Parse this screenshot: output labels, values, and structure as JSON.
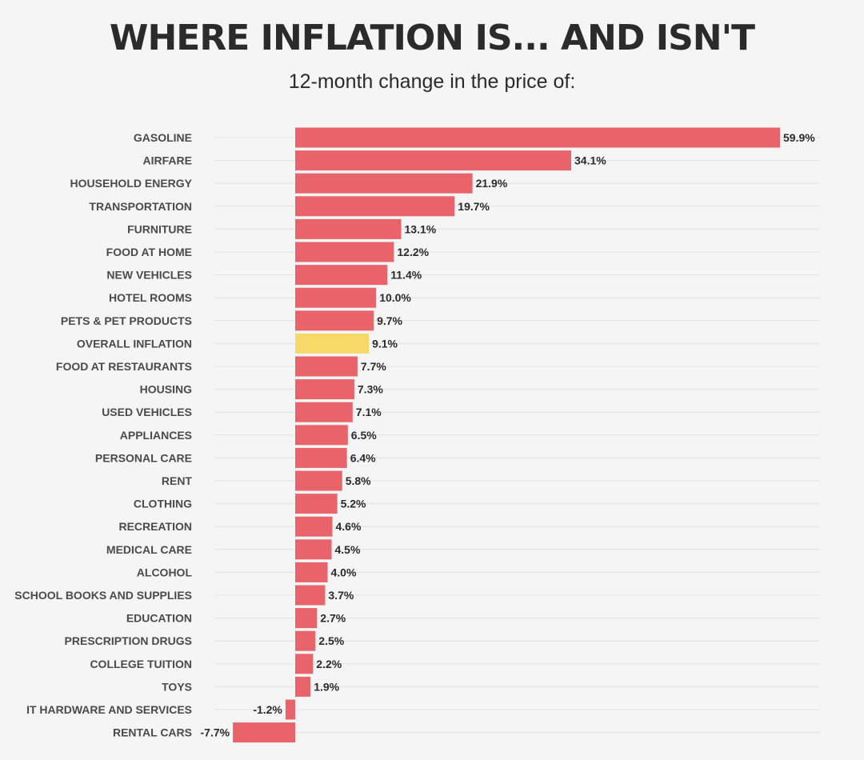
{
  "header": {
    "title": "WHERE INFLATION IS... AND ISN'T",
    "subtitle": "12-month change in the price of:"
  },
  "colors": {
    "bar": "#e8646a",
    "highlight": "#f7d96a",
    "background": "#f5f5f5"
  },
  "chart_data": {
    "type": "bar",
    "orientation": "horizontal",
    "title": "WHERE INFLATION IS... AND ISN'T",
    "subtitle": "12-month change in the price of:",
    "unit": "%",
    "categories": [
      "GASOLINE",
      "AIRFARE",
      "HOUSEHOLD ENERGY",
      "TRANSPORTATION",
      "FURNITURE",
      "FOOD AT HOME",
      "NEW VEHICLES",
      "HOTEL ROOMS",
      "PETS & PET PRODUCTS",
      "OVERALL INFLATION",
      "FOOD AT RESTAURANTS",
      "HOUSING",
      "USED VEHICLES",
      "APPLIANCES",
      "PERSONAL CARE",
      "RENT",
      "CLOTHING",
      "RECREATION",
      "MEDICAL CARE",
      "ALCOHOL",
      "SCHOOL BOOKS AND SUPPLIES",
      "EDUCATION",
      "PRESCRIPTION DRUGS",
      "COLLEGE TUITION",
      "TOYS",
      "IT HARDWARE AND SERVICES",
      "RENTAL CARS"
    ],
    "values": [
      59.9,
      34.1,
      21.9,
      19.7,
      13.1,
      12.2,
      11.4,
      10.0,
      9.7,
      9.1,
      7.7,
      7.3,
      7.1,
      6.5,
      6.4,
      5.8,
      5.2,
      4.6,
      4.5,
      4.0,
      3.7,
      2.7,
      2.5,
      2.2,
      1.9,
      -1.2,
      -7.7
    ],
    "value_labels": [
      "59.9%",
      "34.1%",
      "21.9%",
      "19.7%",
      "13.1%",
      "12.2%",
      "11.4%",
      "10.0%",
      "9.7%",
      "9.1%",
      "7.7%",
      "7.3%",
      "7.1%",
      "6.5%",
      "6.4%",
      "5.8%",
      "5.2%",
      "4.6%",
      "4.5%",
      "4.0%",
      "3.7%",
      "2.7%",
      "2.5%",
      "2.2%",
      "1.9%",
      "-1.2%",
      "-7.7%"
    ],
    "highlight_category": "OVERALL INFLATION",
    "xlim": [
      -7.7,
      59.9
    ],
    "grid": true,
    "legend": "none"
  }
}
